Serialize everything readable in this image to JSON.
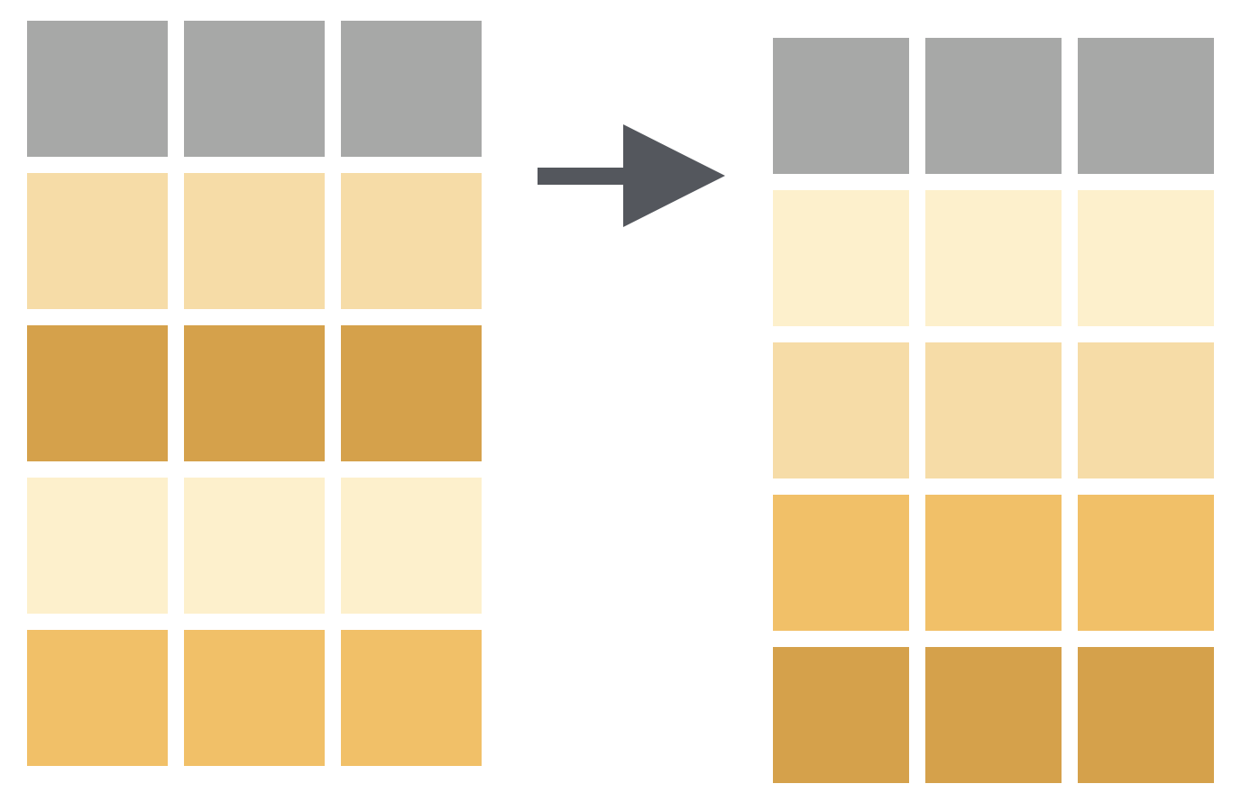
{
  "colors": {
    "header": "#a7a8a7",
    "cream": "#fdf0cc",
    "light_tan": "#f6dca7",
    "gold": "#f1c068",
    "dark_gold": "#d5a14b",
    "arrow": "#54575d"
  },
  "diagram": {
    "before": {
      "rows": [
        {
          "color_key": "header",
          "cells": 3
        },
        {
          "color_key": "light_tan",
          "cells": 3
        },
        {
          "color_key": "dark_gold",
          "cells": 3
        },
        {
          "color_key": "cream",
          "cells": 3
        },
        {
          "color_key": "gold",
          "cells": 3
        }
      ]
    },
    "after": {
      "rows": [
        {
          "color_key": "header",
          "cells": 3
        },
        {
          "color_key": "cream",
          "cells": 3
        },
        {
          "color_key": "light_tan",
          "cells": 3
        },
        {
          "color_key": "gold",
          "cells": 3
        },
        {
          "color_key": "dark_gold",
          "cells": 3
        }
      ]
    },
    "arrow_icon": "right-arrow-icon"
  }
}
